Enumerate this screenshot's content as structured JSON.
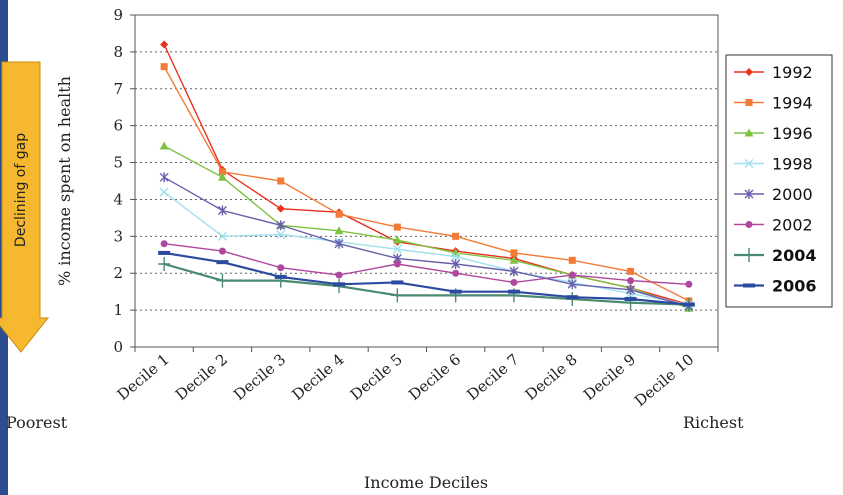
{
  "annotation": {
    "label": "Declining of gap",
    "color": "#f5b82e"
  },
  "side_labels": {
    "left": "Poorest",
    "right": "Richest"
  },
  "chart_data": {
    "type": "line",
    "xlabel": "Income Deciles",
    "ylabel": "% income spent on health",
    "ylim": [
      0,
      9
    ],
    "yticks": [
      0,
      1,
      2,
      3,
      4,
      5,
      6,
      7,
      8,
      9
    ],
    "grid": "horizontal dotted",
    "legend_position": "right",
    "categories": [
      "Decile 1",
      "Decile 2",
      "Decile 3",
      "Decile 4",
      "Decile 5",
      "Decile 6",
      "Decile 7",
      "Decile 8",
      "Decile 9",
      "Decile 10"
    ],
    "series": [
      {
        "name": "1992",
        "color": "#e8321e",
        "marker": "diamond",
        "bold": false,
        "values": [
          8.2,
          4.8,
          3.75,
          3.65,
          2.85,
          2.6,
          2.4,
          1.95,
          1.6,
          1.15
        ]
      },
      {
        "name": "1994",
        "color": "#f47a36",
        "marker": "square",
        "bold": false,
        "values": [
          7.6,
          4.75,
          4.5,
          3.6,
          3.25,
          3.0,
          2.55,
          2.35,
          2.05,
          1.25
        ]
      },
      {
        "name": "1996",
        "color": "#7dc242",
        "marker": "triangle",
        "bold": false,
        "values": [
          5.45,
          4.6,
          3.3,
          3.15,
          2.9,
          2.55,
          2.35,
          1.95,
          1.6,
          1.05
        ]
      },
      {
        "name": "1998",
        "color": "#9fe1ef",
        "marker": "x",
        "bold": false,
        "values": [
          4.2,
          3.0,
          3.05,
          2.85,
          2.65,
          2.45,
          2.05,
          1.75,
          1.45,
          1.15
        ]
      },
      {
        "name": "2000",
        "color": "#6a5fad",
        "marker": "star",
        "bold": false,
        "values": [
          4.6,
          3.7,
          3.3,
          2.8,
          2.4,
          2.25,
          2.05,
          1.7,
          1.55,
          1.1
        ]
      },
      {
        "name": "2002",
        "color": "#b0479f",
        "marker": "circle",
        "bold": false,
        "values": [
          2.8,
          2.6,
          2.15,
          1.95,
          2.25,
          2.0,
          1.75,
          1.95,
          1.8,
          1.7
        ]
      },
      {
        "name": "2004",
        "color": "#4a8a6f",
        "marker": "plus",
        "bold": true,
        "values": [
          2.25,
          1.8,
          1.8,
          1.65,
          1.4,
          1.4,
          1.4,
          1.3,
          1.2,
          1.15
        ]
      },
      {
        "name": "2006",
        "color": "#2b4aa0",
        "marker": "dash",
        "bold": true,
        "values": [
          2.55,
          2.3,
          1.9,
          1.7,
          1.75,
          1.5,
          1.5,
          1.35,
          1.3,
          1.15
        ]
      }
    ]
  }
}
